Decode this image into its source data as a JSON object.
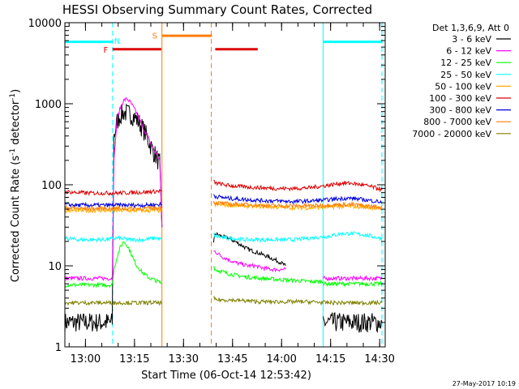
{
  "chart_data": {
    "type": "line",
    "title": "HESSI Observing Summary Count Rates, Corrected",
    "xlabel": "Start Time (06-Oct-14 12:53:42)",
    "ylabel_main": "Corrected Count Rate (s",
    "ylabel_sup": "-1",
    "ylabel_mid": " detector",
    "ylabel_end": ")",
    "x_unit": "minutes after 12:53:42",
    "xlim": [
      0,
      98
    ],
    "ylim": [
      1,
      10000
    ],
    "yscale": "log",
    "x_ticks": [
      {
        "label": "13:00",
        "x": 6.3
      },
      {
        "label": "13:15",
        "x": 21.3
      },
      {
        "label": "13:30",
        "x": 36.3
      },
      {
        "label": "13:45",
        "x": 51.3
      },
      {
        "label": "14:00",
        "x": 66.3
      },
      {
        "label": "14:15",
        "x": 81.3
      },
      {
        "label": "14:30",
        "x": 96.3
      }
    ],
    "y_ticks": [
      {
        "label": "1",
        "y": 1
      },
      {
        "label": "10",
        "y": 10
      },
      {
        "label": "100",
        "y": 100
      },
      {
        "label": "1000",
        "y": 1000
      },
      {
        "label": "10000",
        "y": 10000
      }
    ],
    "legend_header": "Det 1,3,6,9, Att 0",
    "legend_placement": "right",
    "series": [
      {
        "name": "3 - 6 keV",
        "color": "#000000",
        "segments": [
          {
            "x": [
              0,
              4,
              8,
              12,
              14.5
            ],
            "y": [
              2,
              2,
              2,
              2,
              2
            ]
          },
          {
            "x": [
              14.5,
              15,
              16,
              17,
              18,
              19,
              20,
              21,
              22,
              23,
              24,
              25,
              26,
              27,
              28,
              29,
              29.7
            ],
            "y": [
              2,
              400,
              600,
              720,
              780,
              760,
              740,
              700,
              640,
              560,
              480,
              400,
              320,
              260,
              220,
              180,
              30
            ]
          },
          {
            "x": [
              45.5,
              46,
              48,
              50,
              52,
              54,
              56,
              58,
              60,
              62,
              64,
              66,
              67.5
            ],
            "y": [
              20,
              25,
              23,
              22,
              20,
              18,
              16,
              15,
              14,
              13,
              12,
              11,
              10
            ]
          },
          {
            "x": [
              79,
              80,
              84,
              88,
              92,
              96,
              97
            ],
            "y": [
              2,
              2,
              2,
              2,
              2,
              2,
              2
            ]
          }
        ]
      },
      {
        "name": "6 - 12 keV",
        "color": "#ff00ff",
        "segments": [
          {
            "x": [
              0,
              4,
              8,
              12,
              14.5
            ],
            "y": [
              7,
              7,
              7,
              7,
              7
            ]
          },
          {
            "x": [
              14.5,
              15,
              16,
              17,
              18,
              19,
              20,
              21,
              22,
              23,
              24,
              25,
              26,
              27,
              28,
              29,
              29.7
            ],
            "y": [
              7,
              200,
              650,
              900,
              1100,
              1150,
              1050,
              900,
              760,
              620,
              500,
              420,
              340,
              280,
              240,
              200,
              30
            ]
          },
          {
            "x": [
              45.5,
              46,
              48,
              50,
              52,
              54,
              56,
              58,
              60,
              62,
              64,
              66,
              67.5
            ],
            "y": [
              15,
              15,
              13,
              12,
              11,
              10.5,
              10,
              10,
              9.5,
              9.2,
              9,
              9,
              9
            ]
          },
          {
            "x": [
              79,
              80,
              84,
              88,
              92,
              96,
              97
            ],
            "y": [
              7,
              7,
              7,
              7,
              7,
              7,
              7
            ]
          }
        ]
      },
      {
        "name": "12 - 25 keV",
        "color": "#00ff00",
        "segments": [
          {
            "x": [
              0,
              4,
              8,
              12,
              14.5
            ],
            "y": [
              5.8,
              5.8,
              5.8,
              5.8,
              5.8
            ]
          },
          {
            "x": [
              14.5,
              15,
              16,
              17,
              18,
              19,
              20,
              21,
              22,
              23,
              24,
              25,
              26,
              27,
              28,
              29,
              29.7
            ],
            "y": [
              5.8,
              9,
              13,
              17,
              20,
              18,
              15,
              12,
              10,
              9,
              8,
              7.5,
              7,
              6.8,
              6.5,
              6.3,
              6
            ]
          },
          {
            "x": [
              45.5,
              46,
              50,
              55,
              60,
              65,
              70,
              75,
              79
            ],
            "y": [
              10,
              9,
              8,
              7.3,
              7,
              6.8,
              6.6,
              6.4,
              6.4
            ]
          },
          {
            "x": [
              79,
              84,
              88,
              92,
              96,
              97
            ],
            "y": [
              6,
              6,
              6,
              6,
              6,
              6
            ]
          }
        ]
      },
      {
        "name": "25 - 50 keV",
        "color": "#00ffff",
        "segments": [
          {
            "x": [
              0,
              4,
              8,
              12,
              16,
              20,
              24,
              28,
              29.7
            ],
            "y": [
              22,
              21,
              21,
              21,
              22,
              21,
              21,
              22,
              21
            ]
          },
          {
            "x": [
              45.5,
              46,
              50,
              55,
              60,
              65,
              70,
              75,
              80,
              85,
              88,
              92,
              96,
              97
            ],
            "y": [
              25,
              23,
              22,
              21,
              21,
              21,
              21,
              22,
              23,
              25,
              25,
              24,
              22,
              22
            ]
          }
        ]
      },
      {
        "name": "50 - 100 keV",
        "color": "#ffaa00",
        "segments": [
          {
            "x": [
              0,
              4,
              8,
              12,
              16,
              20,
              24,
              28,
              29.7
            ],
            "y": [
              48,
              48,
              48,
              48,
              48,
              48,
              48,
              48,
              48
            ]
          },
          {
            "x": [
              45.5,
              46,
              50,
              55,
              60,
              65,
              70,
              75,
              80,
              85,
              88,
              92,
              96,
              97
            ],
            "y": [
              58,
              57,
              56,
              55,
              54,
              53,
              52,
              52,
              53,
              54,
              54,
              53,
              51,
              50
            ]
          }
        ]
      },
      {
        "name": "100 - 300 keV",
        "color": "#dd0000",
        "segments": [
          {
            "x": [
              0,
              4,
              8,
              12,
              16,
              20,
              24,
              28,
              29.7
            ],
            "y": [
              82,
              80,
              79,
              79,
              79,
              80,
              81,
              83,
              84
            ]
          },
          {
            "x": [
              45.5,
              46,
              50,
              55,
              60,
              65,
              70,
              75,
              80,
              85,
              88,
              92,
              96,
              97
            ],
            "y": [
              110,
              105,
              98,
              94,
              92,
              90,
              90,
              92,
              98,
              105,
              104,
              98,
              90,
              86
            ]
          }
        ]
      },
      {
        "name": "300 - 800 keV",
        "color": "#0000dd",
        "segments": [
          {
            "x": [
              0,
              4,
              8,
              12,
              16,
              20,
              24,
              28,
              29.7
            ],
            "y": [
              57,
              56,
              56,
              56,
              56,
              56,
              56,
              57,
              57
            ]
          },
          {
            "x": [
              45.5,
              46,
              50,
              55,
              60,
              65,
              70,
              75,
              80,
              85,
              88,
              92,
              96,
              97
            ],
            "y": [
              75,
              72,
              68,
              66,
              64,
              63,
              62,
              63,
              65,
              68,
              68,
              65,
              62,
              60
            ]
          }
        ]
      },
      {
        "name": "800 - 7000 keV",
        "color": "#ff7f00",
        "segments": [
          {
            "x": [
              0,
              4,
              8,
              12,
              16,
              20,
              24,
              28,
              29.7
            ],
            "y": [
              52,
              51,
              51,
              51,
              51,
              51,
              51,
              52,
              52
            ]
          },
          {
            "x": [
              45.5,
              46,
              50,
              55,
              60,
              65,
              70,
              75,
              80,
              85,
              88,
              92,
              96,
              97
            ],
            "y": [
              62,
              60,
              58,
              57,
              56,
              55,
              55,
              55,
              56,
              57,
              57,
              55,
              53,
              52
            ]
          }
        ]
      },
      {
        "name": "7000 - 20000 keV",
        "color": "#808000",
        "segments": [
          {
            "x": [
              0,
              4,
              8,
              12,
              16,
              20,
              24,
              28,
              29.7
            ],
            "y": [
              3.5,
              3.5,
              3.5,
              3.5,
              3.5,
              3.5,
              3.5,
              3.5,
              3.5
            ]
          },
          {
            "x": [
              45.5,
              46,
              50,
              55,
              60,
              65,
              70,
              75,
              80,
              85,
              88,
              92,
              96,
              97
            ],
            "y": [
              4,
              3.8,
              3.8,
              3.7,
              3.6,
              3.6,
              3.6,
              3.6,
              3.5,
              3.5,
              3.5,
              3.5,
              3.5,
              3.5
            ]
          }
        ]
      }
    ],
    "flags": [
      {
        "label": "N",
        "color": "#00ffff",
        "segments": [
          [
            0,
            14.6
          ],
          [
            79,
            97
          ]
        ],
        "level": 5800,
        "label_x": 16,
        "label_y": 6000
      },
      {
        "label": "F",
        "color": "#dd0000",
        "segments": [
          [
            14.6,
            29.5
          ],
          [
            46,
            59
          ]
        ],
        "level": 4700,
        "label_x": 12.5,
        "label_y": 4700
      },
      {
        "label": "S",
        "color": "#ff7f00",
        "segments": [
          [
            29.7,
            45
          ]
        ],
        "level": 6900,
        "label_x": 27.5,
        "label_y": 7000
      }
    ],
    "vlines": [
      {
        "x": 0,
        "color": "#00ffff",
        "style": "solid"
      },
      {
        "x": 14.6,
        "color": "#00ffff",
        "style": "dashed"
      },
      {
        "x": 29.7,
        "color": "#ff7f00",
        "style": "solid"
      },
      {
        "x": 44.8,
        "color": "#ff7f00",
        "style": "dashed"
      },
      {
        "x": 79,
        "color": "#00ffff",
        "style": "solid"
      },
      {
        "x": 97,
        "color": "#00ffff",
        "style": "dashed"
      }
    ],
    "footer": "27-May-2017 10:19"
  }
}
